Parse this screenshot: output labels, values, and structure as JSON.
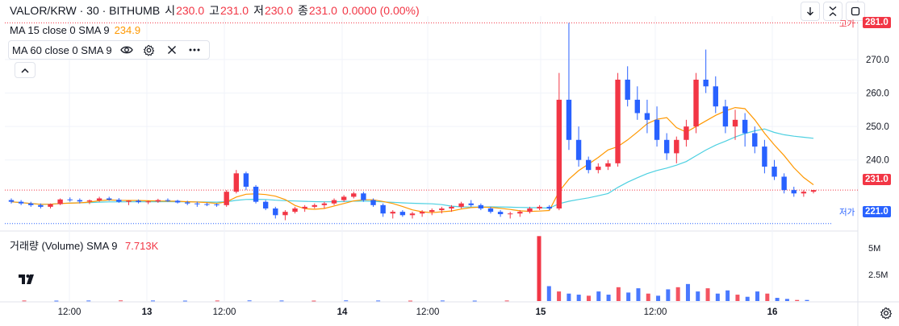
{
  "header": {
    "symbol": "VALOR/KRW · 30 · BITHUMB",
    "open_label": "시",
    "open": "230.0",
    "high_label": "고",
    "high": "231.0",
    "low_label": "저",
    "low": "230.0",
    "close_label": "종",
    "close": "231.0",
    "change": "0.0000 (0.00%)"
  },
  "indicators": {
    "ma15_label": "MA 15 close 0 SMA 9",
    "ma15_value": "234.9",
    "ma60_label": "MA 60 close 0 SMA 9",
    "volume_label": "거래량 (Volume) SMA 9",
    "volume_value": "7.713K"
  },
  "price_tags": {
    "high_tag": "281.0",
    "last_tag": "231.0",
    "low_tag": "221.0",
    "high_label": "고가",
    "low_label": "저가"
  },
  "colors": {
    "up": "#f23645",
    "down": "#2962ff",
    "ma15": "#ff9800",
    "ma60": "#4dd0e1",
    "grid": "#f0f3fa",
    "high_line": "#f23645",
    "low_line": "#2962ff"
  },
  "chart_data": {
    "type": "candlestick",
    "symbol": "VALOR/KRW",
    "interval": "30",
    "exchange": "BITHUMB",
    "y_axis": {
      "ticks": [
        270.0,
        260.0,
        250.0,
        240.0
      ],
      "range": [
        219,
        283
      ]
    },
    "volume_axis": {
      "ticks": [
        "5M",
        "2.5M"
      ],
      "range_millions": [
        0,
        6.2
      ]
    },
    "x_axis": {
      "tick_labels": [
        "12:00",
        "13",
        "12:00",
        "14",
        "12:00",
        "15",
        "12:00",
        "16"
      ]
    },
    "high_marker": 281.0,
    "low_marker": 221.0,
    "last_price": 231.0,
    "candles_ohlc_hourly_approx": [
      [
        228,
        228.5,
        227,
        227.5
      ],
      [
        227.5,
        228,
        226.5,
        227
      ],
      [
        227,
        227.5,
        226,
        226.5
      ],
      [
        226.5,
        227,
        225.5,
        226
      ],
      [
        226,
        227,
        225.5,
        226.8
      ],
      [
        226.8,
        228.5,
        226.5,
        228.2
      ],
      [
        228.2,
        228.8,
        227.5,
        228
      ],
      [
        228,
        228.5,
        227,
        227.6
      ],
      [
        227.6,
        228.2,
        226.8,
        227.9
      ],
      [
        227.9,
        229,
        227.5,
        228.5
      ],
      [
        228.5,
        229,
        227.8,
        228.1
      ],
      [
        228.1,
        228.6,
        227.2,
        227.5
      ],
      [
        227.5,
        228,
        226.5,
        227.8
      ],
      [
        227.8,
        228.2,
        227,
        227.4
      ],
      [
        227.4,
        227.9,
        226.8,
        227.6
      ],
      [
        227.6,
        228.4,
        227.2,
        228
      ],
      [
        228,
        228.5,
        227.5,
        227.8
      ],
      [
        227.8,
        228.1,
        227,
        227.3
      ],
      [
        227.3,
        227.8,
        226.5,
        227
      ],
      [
        227,
        227.5,
        226,
        226.8
      ],
      [
        226.8,
        227.2,
        226.2,
        226.7
      ],
      [
        226.7,
        227,
        226,
        226.5
      ],
      [
        226.5,
        231,
        226,
        230.5
      ],
      [
        230.5,
        237,
        230,
        236
      ],
      [
        236,
        236.5,
        231,
        232
      ],
      [
        232,
        232.5,
        227,
        227.5
      ],
      [
        227.5,
        228,
        225,
        225.5
      ],
      [
        225.5,
        226,
        222.5,
        223.5
      ],
      [
        223.5,
        225,
        222,
        224.5
      ],
      [
        224.5,
        226,
        224,
        225.5
      ],
      [
        225.5,
        226.5,
        224.5,
        226
      ],
      [
        226,
        227,
        225.5,
        226.5
      ],
      [
        226.5,
        227.5,
        225.5,
        227
      ],
      [
        227,
        228.5,
        226.5,
        228
      ],
      [
        228,
        229.5,
        227.5,
        229
      ],
      [
        229,
        230.5,
        228.5,
        230
      ],
      [
        230,
        230.5,
        227.5,
        228
      ],
      [
        228,
        228.5,
        226,
        226.5
      ],
      [
        226.5,
        227,
        223,
        224
      ],
      [
        224,
        225,
        222.5,
        224.5
      ],
      [
        224.5,
        225,
        223,
        223.5
      ],
      [
        223.5,
        224.5,
        222.5,
        224
      ],
      [
        224,
        225,
        223,
        224.5
      ],
      [
        224.5,
        225.5,
        223.5,
        225
      ],
      [
        225,
        226,
        224,
        225.5
      ],
      [
        225.5,
        226.5,
        224.5,
        226
      ],
      [
        226,
        227.5,
        225.5,
        227
      ],
      [
        227,
        228,
        226,
        226.5
      ],
      [
        226.5,
        227,
        225,
        225.5
      ],
      [
        225.5,
        226,
        224,
        224.5
      ],
      [
        224.5,
        225,
        223,
        223.8
      ],
      [
        223.8,
        224.5,
        222.5,
        224
      ],
      [
        224,
        225,
        223,
        224.5
      ],
      [
        224.5,
        226,
        224,
        225.5
      ],
      [
        225.5,
        226.5,
        225,
        226
      ],
      [
        226,
        226.5,
        225,
        225.5
      ],
      [
        225.5,
        266,
        225,
        258
      ],
      [
        258,
        281,
        243,
        246
      ],
      [
        246,
        250,
        238,
        240
      ],
      [
        240,
        241,
        236,
        237
      ],
      [
        237,
        239,
        236,
        238
      ],
      [
        238,
        240,
        237,
        239
      ],
      [
        239,
        266,
        238,
        264
      ],
      [
        264,
        268,
        256,
        258
      ],
      [
        258,
        262,
        252,
        254
      ],
      [
        254,
        258,
        248,
        252
      ],
      [
        252,
        256,
        244,
        246
      ],
      [
        246,
        248,
        240,
        242
      ],
      [
        242,
        247,
        239,
        246
      ],
      [
        246,
        252,
        244,
        250
      ],
      [
        250,
        266,
        248,
        264
      ],
      [
        264,
        273,
        260,
        262
      ],
      [
        262,
        265,
        254,
        256
      ],
      [
        256,
        258,
        248,
        250
      ],
      [
        250,
        255,
        246,
        252
      ],
      [
        252,
        254,
        244,
        248
      ],
      [
        248,
        250,
        242,
        244
      ],
      [
        244,
        246,
        236,
        238
      ],
      [
        238,
        240,
        234,
        235
      ],
      [
        235,
        236,
        230,
        231
      ],
      [
        231,
        232,
        229,
        230
      ],
      [
        230,
        231,
        229,
        230.5
      ],
      [
        230.5,
        231,
        230,
        231
      ]
    ],
    "volume_millions_approx": [
      0.05,
      0.04,
      0.05,
      0.06,
      0.05,
      0.04,
      0.05,
      0.06,
      0.05,
      0.04,
      0.06,
      0.05,
      0.04,
      0.05,
      0.04,
      0.05,
      6.1,
      1.4,
      0.9,
      0.7,
      0.6,
      0.5,
      0.9,
      0.6,
      1.3,
      0.8,
      1.2,
      0.7,
      0.5,
      1.1,
      1.3,
      1.6,
      0.9,
      1.2,
      0.7,
      1.0,
      0.6,
      0.4,
      0.9,
      0.7,
      0.3,
      0.2,
      0.1,
      0.1
    ]
  }
}
